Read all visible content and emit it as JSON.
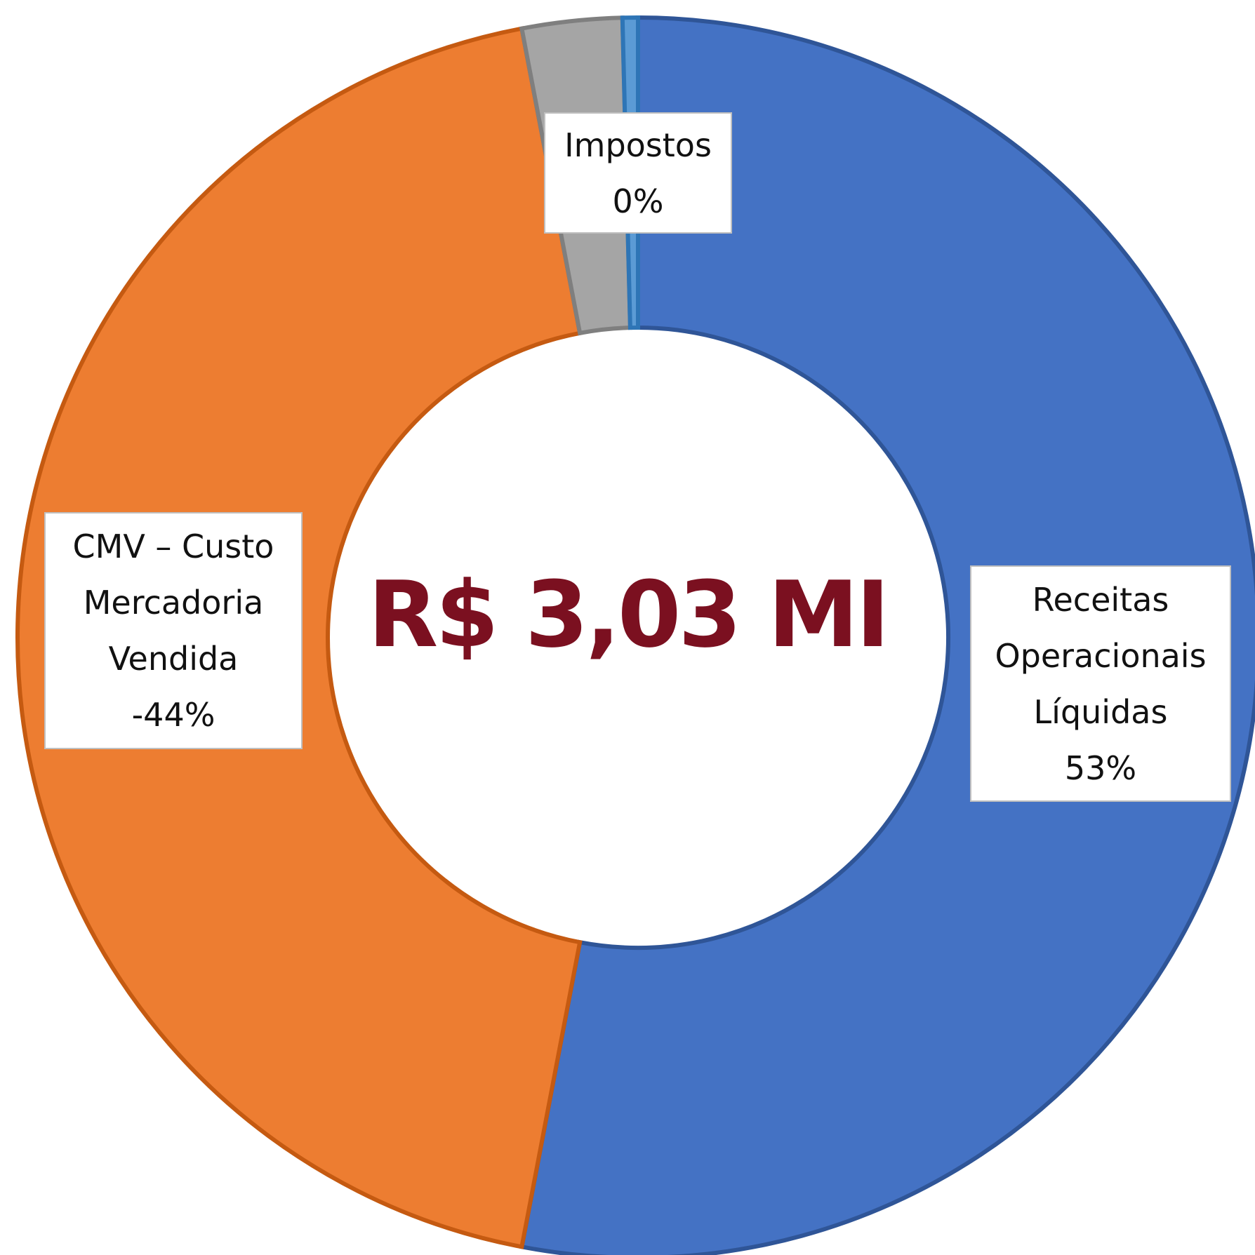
{
  "chart_data": {
    "type": "donut",
    "center_label": "R$ 3,03 MI",
    "categories": [
      "Receitas Operacionais Líquidas",
      "CMV – Custo Mercadoria Vendida",
      null,
      "Impostos"
    ],
    "values": [
      53,
      -44,
      2.6,
      0.4
    ],
    "value_labels": [
      "53%",
      "-44%",
      null,
      "0%"
    ],
    "colors": [
      "#4472c4",
      "#ed7d31",
      "#a5a5a5",
      "#5b9bd5"
    ]
  }
}
